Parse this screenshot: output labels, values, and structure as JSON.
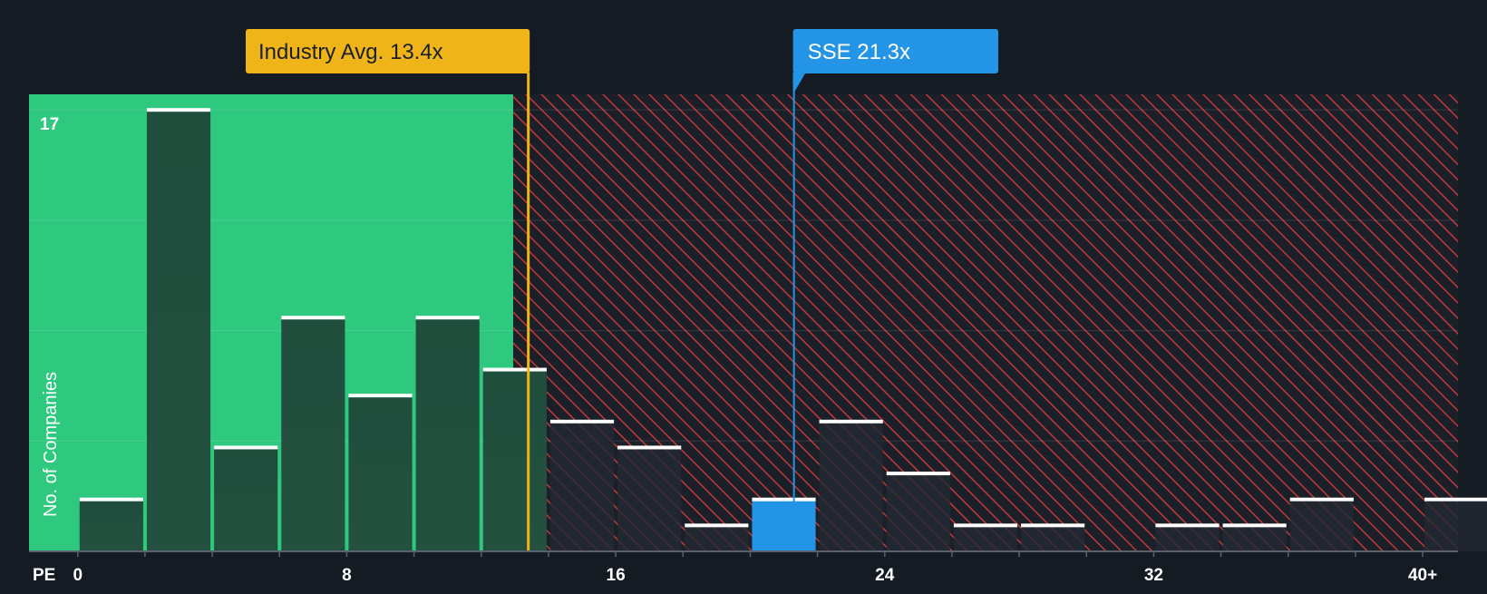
{
  "chart_data": {
    "type": "bar",
    "title": "",
    "xlabel": "PE",
    "ylabel": "No. of Companies",
    "y_max_label": "17",
    "ylim": [
      0,
      17.6
    ],
    "x_ticks": [
      {
        "value": 0,
        "label": "0"
      },
      {
        "value": 8,
        "label": "8"
      },
      {
        "value": 16,
        "label": "16"
      },
      {
        "value": 24,
        "label": "24"
      },
      {
        "value": 32,
        "label": "32"
      },
      {
        "value": 40,
        "label": "40+"
      }
    ],
    "bin_width": 2,
    "bins": [
      {
        "start": 0,
        "value": 2
      },
      {
        "start": 2,
        "value": 17
      },
      {
        "start": 4,
        "value": 4
      },
      {
        "start": 6,
        "value": 9
      },
      {
        "start": 8,
        "value": 6
      },
      {
        "start": 10,
        "value": 9
      },
      {
        "start": 12,
        "value": 7
      },
      {
        "start": 14,
        "value": 5
      },
      {
        "start": 16,
        "value": 4
      },
      {
        "start": 18,
        "value": 1
      },
      {
        "start": 20,
        "value": 2,
        "highlight": true
      },
      {
        "start": 22,
        "value": 5
      },
      {
        "start": 24,
        "value": 3
      },
      {
        "start": 26,
        "value": 1
      },
      {
        "start": 28,
        "value": 1
      },
      {
        "start": 30,
        "value": 0
      },
      {
        "start": 32,
        "value": 1
      },
      {
        "start": 34,
        "value": 1
      },
      {
        "start": 36,
        "value": 2
      },
      {
        "start": 38,
        "value": 0
      },
      {
        "start": 40,
        "value": 2
      }
    ],
    "fair_zone_end": 12.95,
    "industry_avg": {
      "value": 13.4,
      "label": "Industry Avg. 13.4x"
    },
    "company": {
      "value": 21.3,
      "label": "SSE 21.3x"
    },
    "gridlines": [
      0,
      4.25,
      8.5,
      12.75,
      17
    ]
  },
  "colors": {
    "background": "#151b23",
    "fair_zone": "#2ec97e",
    "bar_dark": "#1f4e3d",
    "bar_over": "#232a33",
    "hatch": "#c0393b",
    "industry": "#efb418",
    "company": "#2394e6",
    "bar_cap": "#ffffff"
  }
}
